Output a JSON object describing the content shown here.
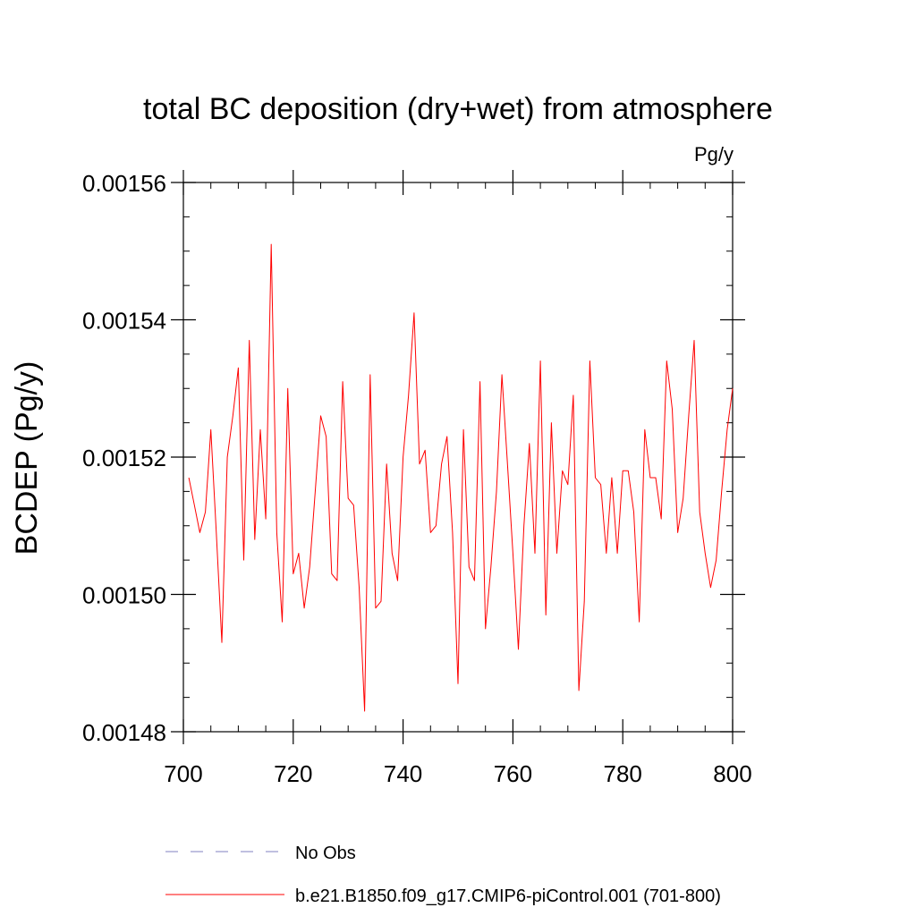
{
  "chart_data": {
    "type": "line",
    "title": "total BC deposition (dry+wet) from atmosphere",
    "units_label": "Pg/y",
    "ylabel": "BCDEP  (Pg/y)",
    "xlabel": "",
    "xlim": [
      700,
      800
    ],
    "ylim": [
      0.00148,
      0.00156
    ],
    "x_ticks": [
      700,
      720,
      740,
      760,
      780,
      800
    ],
    "x_tick_labels": [
      "700",
      "720",
      "740",
      "760",
      "780",
      "800"
    ],
    "y_ticks": [
      0.00148,
      0.0015,
      0.00152,
      0.00154,
      0.00156
    ],
    "y_tick_labels": [
      "0.00148",
      "0.00150",
      "0.00152",
      "0.00154",
      "0.00156"
    ],
    "y_minor_step": 5e-06,
    "x_minor_step": 5,
    "grid": false,
    "series": [
      {
        "name": "b.e21.B1850.f09_g17.CMIP6-piControl.001 (701-800)",
        "color": "#ff0000",
        "x": [
          701,
          702,
          703,
          704,
          705,
          706,
          707,
          708,
          709,
          710,
          711,
          712,
          713,
          714,
          715,
          716,
          717,
          718,
          719,
          720,
          721,
          722,
          723,
          724,
          725,
          726,
          727,
          728,
          729,
          730,
          731,
          732,
          733,
          734,
          735,
          736,
          737,
          738,
          739,
          740,
          741,
          742,
          743,
          744,
          745,
          746,
          747,
          748,
          749,
          750,
          751,
          752,
          753,
          754,
          755,
          756,
          757,
          758,
          759,
          760,
          761,
          762,
          763,
          764,
          765,
          766,
          767,
          768,
          769,
          770,
          771,
          772,
          773,
          774,
          775,
          776,
          777,
          778,
          779,
          780,
          781,
          782,
          783,
          784,
          785,
          786,
          787,
          788,
          789,
          790,
          791,
          792,
          793,
          794,
          795,
          796,
          797,
          798,
          799,
          800
        ],
        "y": [
          0.001517,
          0.001513,
          0.001509,
          0.001512,
          0.001524,
          0.001509,
          0.001493,
          0.00152,
          0.001526,
          0.001533,
          0.001505,
          0.001537,
          0.001508,
          0.001524,
          0.001511,
          0.001551,
          0.001509,
          0.001496,
          0.00153,
          0.001503,
          0.001506,
          0.001498,
          0.001504,
          0.001515,
          0.001526,
          0.001523,
          0.001503,
          0.001502,
          0.001531,
          0.001514,
          0.001513,
          0.001501,
          0.001483,
          0.001532,
          0.001498,
          0.001499,
          0.001519,
          0.001506,
          0.001502,
          0.00152,
          0.001529,
          0.001541,
          0.001519,
          0.001521,
          0.001509,
          0.00151,
          0.001519,
          0.001523,
          0.001509,
          0.001487,
          0.001524,
          0.001504,
          0.001502,
          0.001531,
          0.001495,
          0.001504,
          0.001515,
          0.001532,
          0.001519,
          0.001506,
          0.001492,
          0.00151,
          0.001522,
          0.001506,
          0.001534,
          0.001497,
          0.001525,
          0.001506,
          0.001518,
          0.001516,
          0.001529,
          0.001486,
          0.001499,
          0.001534,
          0.001517,
          0.001516,
          0.001506,
          0.001517,
          0.001506,
          0.001518,
          0.001518,
          0.001512,
          0.001496,
          0.001524,
          0.001517,
          0.001517,
          0.001511,
          0.001534,
          0.001527,
          0.001509,
          0.001514,
          0.001526,
          0.001537,
          0.001512,
          0.001506,
          0.001501,
          0.001505,
          0.001515,
          0.001524,
          0.00153
        ]
      }
    ],
    "legend": {
      "placement": "bottom-left",
      "entries": [
        {
          "label": "No Obs",
          "color": "#8080c0",
          "style": "dashed"
        },
        {
          "label": "b.e21.B1850.f09_g17.CMIP6-piControl.001 (701-800)",
          "color": "#ff0000",
          "style": "solid"
        }
      ]
    }
  }
}
